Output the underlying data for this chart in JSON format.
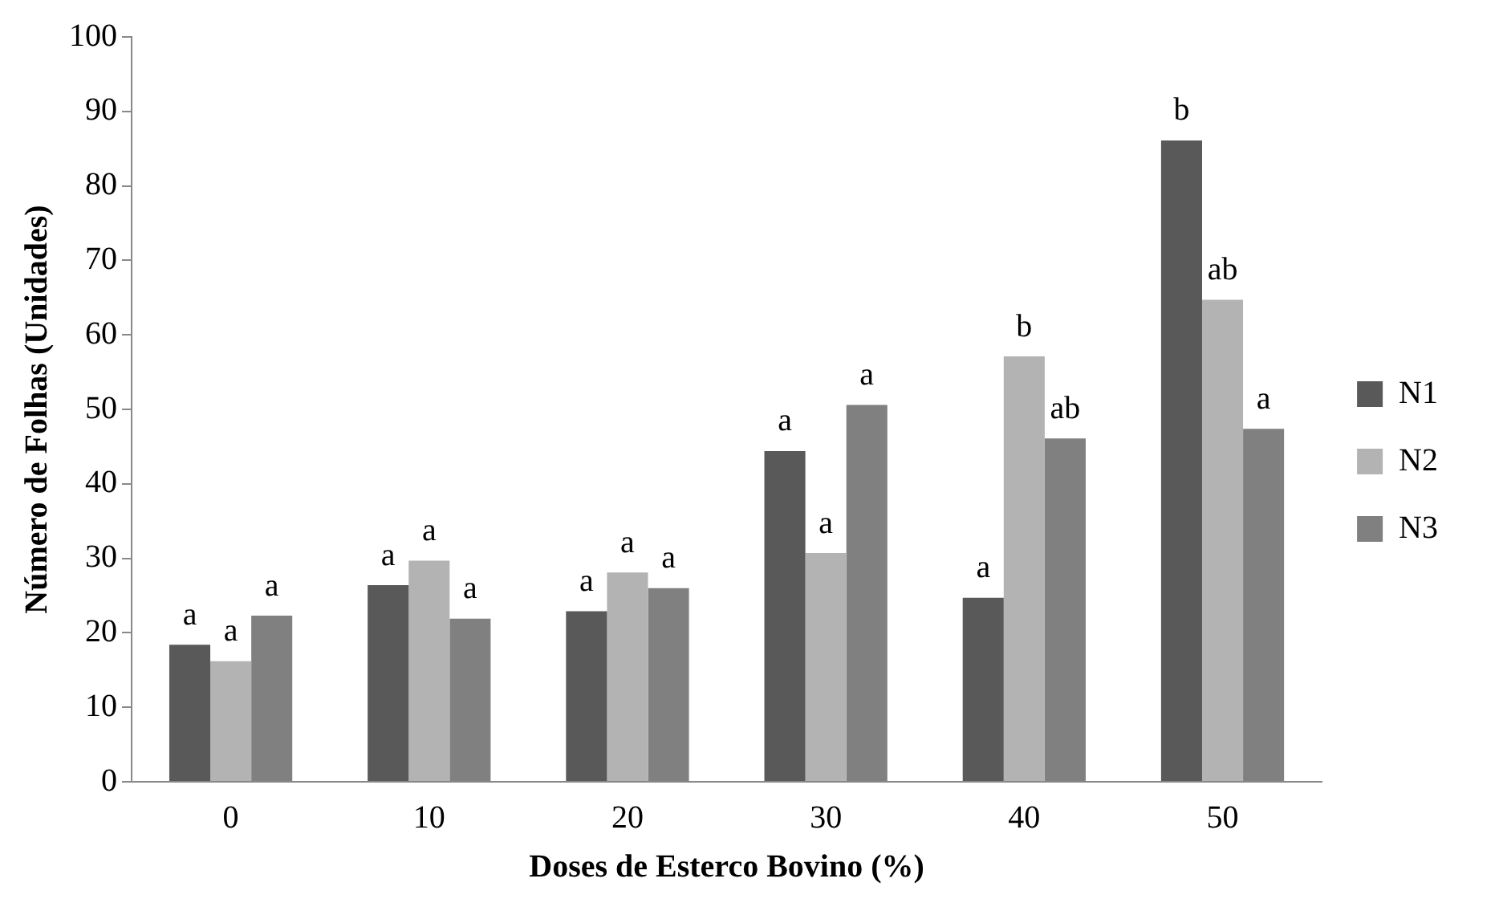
{
  "chart_data": {
    "type": "bar",
    "xlabel": "Doses de Esterco Bovino (%)",
    "ylabel": "Número de Folhas (Unidades)",
    "categories": [
      "0",
      "10",
      "20",
      "30",
      "40",
      "50"
    ],
    "series": [
      {
        "name": "N1",
        "color": "#595959",
        "values": [
          18.4,
          26.4,
          22.9,
          44.4,
          24.7,
          86.1
        ],
        "value_labels": [
          "a",
          "a",
          "a",
          "a",
          "a",
          "b"
        ]
      },
      {
        "name": "N2",
        "color": "#b3b3b3",
        "values": [
          16.2,
          29.7,
          28.1,
          30.7,
          57.1,
          64.7
        ],
        "value_labels": [
          "a",
          "a",
          "a",
          "a",
          "b",
          "ab"
        ]
      },
      {
        "name": "N3",
        "color": "#808080",
        "values": [
          22.3,
          21.9,
          26.0,
          50.6,
          46.1,
          47.4
        ],
        "value_labels": [
          "a",
          "a",
          "a",
          "a",
          "ab",
          "a"
        ]
      }
    ],
    "ylim": [
      0,
      100
    ],
    "yticks": [
      0,
      10,
      20,
      30,
      40,
      50,
      60,
      70,
      80,
      90,
      100
    ],
    "grid": false,
    "legend": "right"
  }
}
